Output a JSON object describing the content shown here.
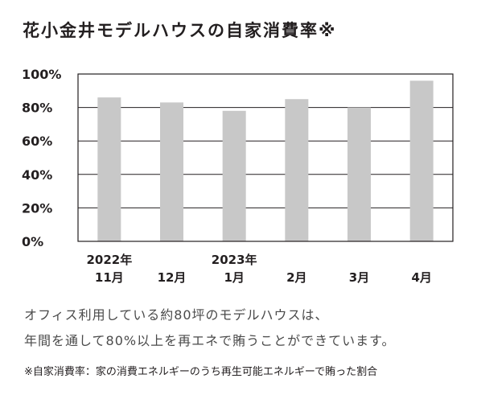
{
  "chart_data": {
    "type": "bar",
    "title": "花小金井モデルハウスの自家消費率※",
    "categories": [
      {
        "line1": "2022年",
        "line2": "11月"
      },
      {
        "line1": "",
        "line2": "12月"
      },
      {
        "line1": "2023年",
        "line2": "1月"
      },
      {
        "line1": "",
        "line2": "2月"
      },
      {
        "line1": "",
        "line2": "3月"
      },
      {
        "line1": "",
        "line2": "4月"
      }
    ],
    "values": [
      86,
      83,
      78,
      85,
      80,
      96
    ],
    "ylim": [
      0,
      100
    ],
    "yticks": [
      "0%",
      "20%",
      "40%",
      "60%",
      "80%",
      "100%"
    ],
    "grid": true,
    "bar_color": "#c8c8c8",
    "grid_color": "#231f20"
  },
  "description": {
    "line1": "オフィス利用している約80坪のモデルハウスは、",
    "line2": "年間を通して80%以上を再エネで賄うことができています。"
  },
  "footnote": "※自家消費率：家の消費エネルギーのうち再生可能エネルギーで賄った割合"
}
